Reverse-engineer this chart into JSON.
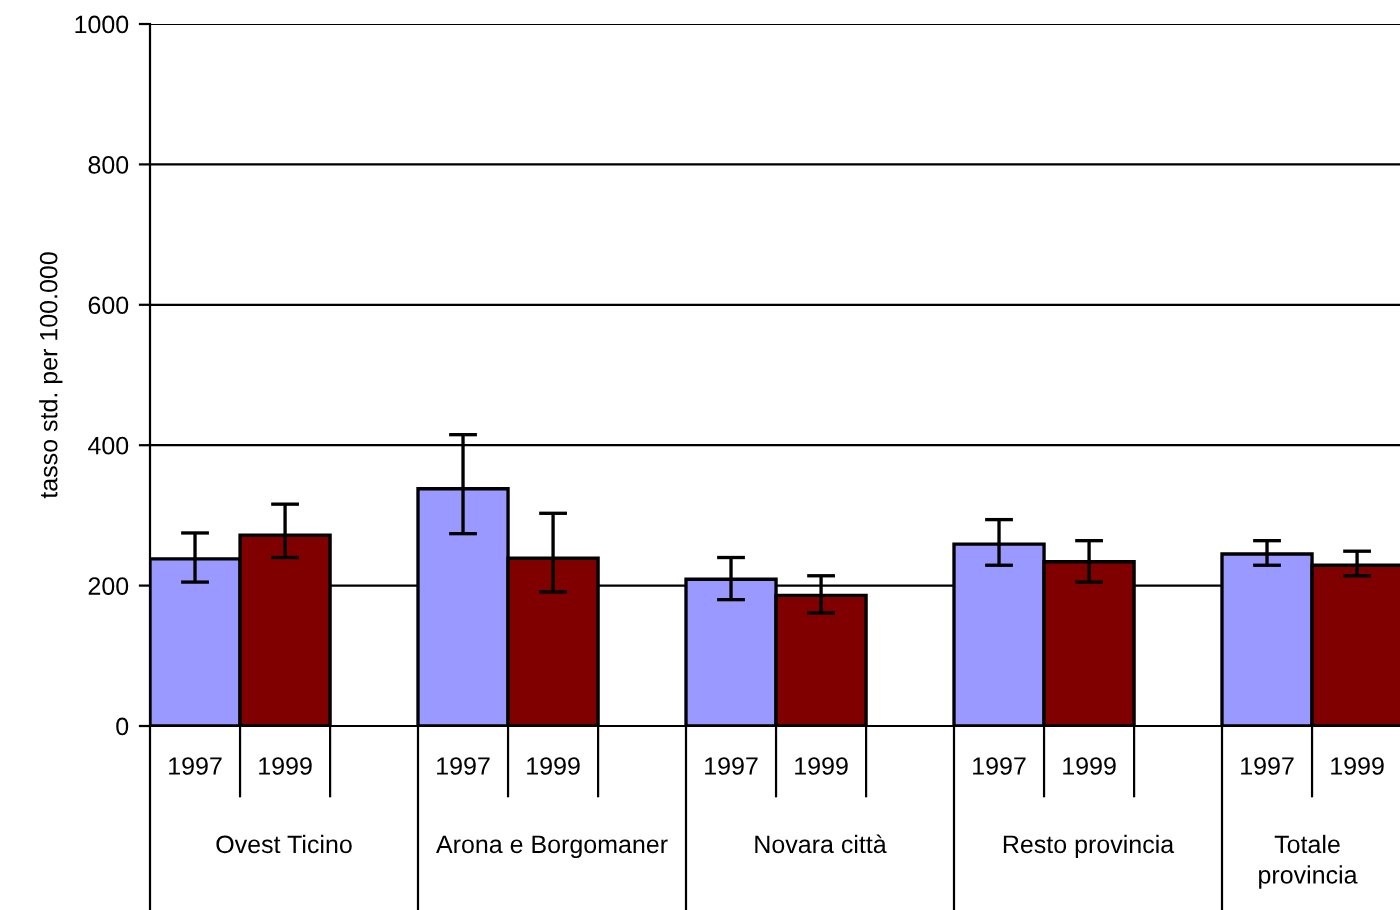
{
  "chart_data": {
    "type": "bar",
    "ylabel": "tasso std. per 100.000",
    "categories": [
      "Ovest Ticino",
      "Arona e Borgomaner",
      "Novara città",
      "Resto provincia",
      "Totale provincia"
    ],
    "series": [
      {
        "name": "1997",
        "color": "#9999ff",
        "values": [
          238,
          338,
          209,
          259,
          245
        ],
        "errors": [
          [
            205,
            275
          ],
          [
            274,
            415
          ],
          [
            180,
            240
          ],
          [
            229,
            294
          ],
          [
            229,
            264
          ]
        ]
      },
      {
        "name": "1999",
        "color": "#800000",
        "values": [
          272,
          239,
          186,
          234,
          229
        ],
        "errors": [
          [
            240,
            316
          ],
          [
            191,
            303
          ],
          [
            161,
            214
          ],
          [
            205,
            264
          ],
          [
            214,
            249
          ]
        ]
      }
    ],
    "ylim": [
      0,
      1000
    ],
    "yticks": [
      0,
      200,
      400,
      600,
      800,
      1000
    ],
    "grid": "y",
    "legend": false
  }
}
